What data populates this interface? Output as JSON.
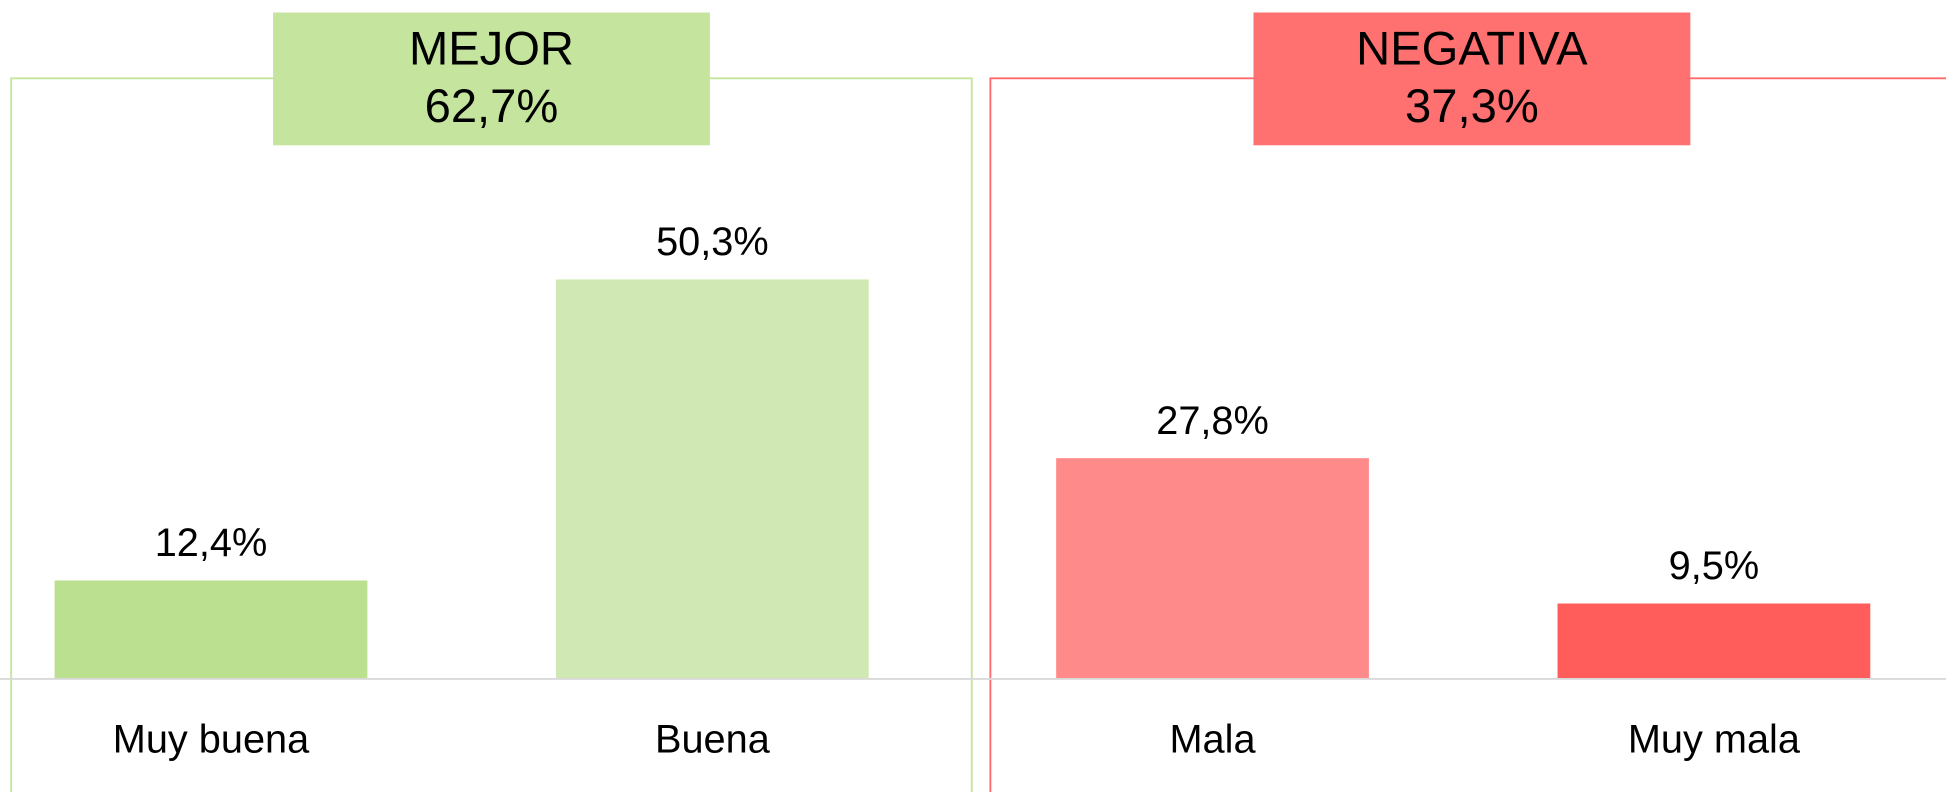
{
  "chart_data": {
    "type": "bar",
    "categories": [
      "Muy buena",
      "Buena",
      "Mala",
      "Muy mala"
    ],
    "values": [
      12.4,
      50.3,
      27.8,
      9.5
    ],
    "value_labels": [
      "12,4%",
      "50,3%",
      "27,8%",
      "9,5%"
    ],
    "colors": [
      "#bbe08f",
      "#d0e9b4",
      "#ff8a8a",
      "#ff5c5c"
    ],
    "ylim": [
      0,
      85
    ],
    "groups": [
      {
        "label": "MEJOR",
        "value": 62.7,
        "value_label": "62,7%",
        "color": "#c5e59e",
        "border": "#c5e59e"
      },
      {
        "label": "NEGATIVA",
        "value": 37.3,
        "value_label": "37,3%",
        "color": "#ff7070",
        "border": "#ff6b6b"
      }
    ]
  }
}
